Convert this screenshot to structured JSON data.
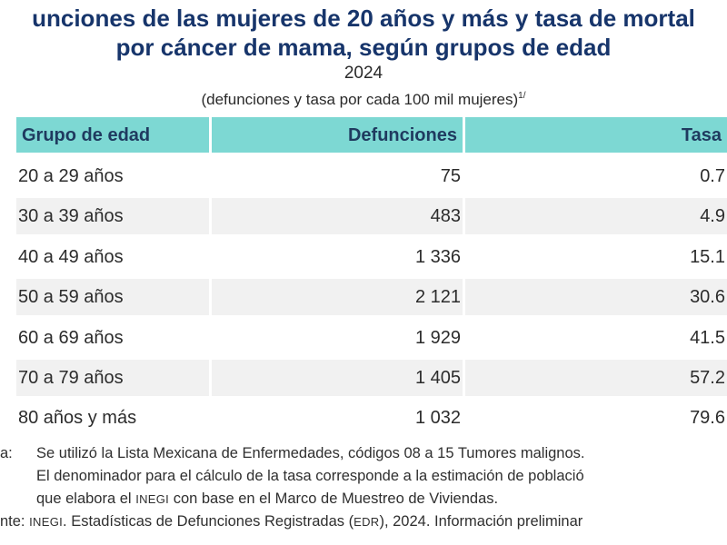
{
  "title": {
    "line1": "unciones de las mujeres de 20 años y más y tasa de mortal",
    "line2": "por cáncer de mama, según grupos de edad",
    "year": "2024",
    "units": "(defunciones y tasa por cada 100 mil mujeres)",
    "units_note": "1/"
  },
  "table": {
    "headers": [
      "Grupo de edad",
      "Defunciones",
      "Tasa"
    ],
    "rows": [
      [
        "20 a 29 años",
        "75",
        "0.7"
      ],
      [
        "30 a 39 años",
        "483",
        "4.9"
      ],
      [
        "40 a 49 años",
        "1 336",
        "15.1"
      ],
      [
        "50 a 59 años",
        "2 121",
        "30.6"
      ],
      [
        "60 a 69 años",
        "1 929",
        "41.5"
      ],
      [
        "70 a 79 años",
        "1 405",
        "57.2"
      ],
      [
        "80 años y más",
        "1 032",
        "79.6"
      ]
    ]
  },
  "notes": {
    "nota_label": "a:",
    "nota_line1": "Se utilizó la Lista Mexicana de Enfermedades, códigos 08 a 15 Tumores malignos.",
    "nota_line2": "El denominador para el cálculo de la tasa corresponde a la estimación de població",
    "nota_line3_pre": "que elabora el",
    "nota_line3_inegi": "INEGI",
    "nota_line3_post": "con base en el Marco de Muestreo de Viviendas.",
    "fuente_label": "nte:",
    "fuente_inegi": "INEGI",
    "fuente_mid": ". Estadísticas de Defunciones Registradas (",
    "fuente_edr": "EDR",
    "fuente_post": "), 2024. Información preliminar"
  }
}
